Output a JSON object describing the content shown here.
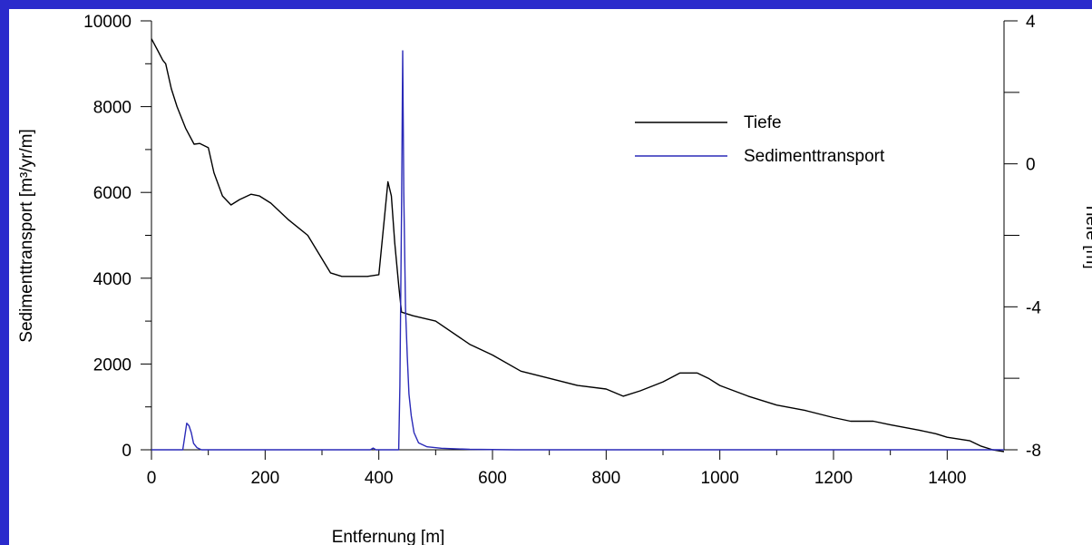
{
  "chart_data": {
    "type": "line",
    "xlabel": "Entfernung [m]",
    "ylabel": "Sedimenttransport [m³/yr/m]",
    "y2label": "Tiefe [m]",
    "xlim": [
      0,
      1500
    ],
    "ylim": [
      0,
      10000
    ],
    "y2lim": [
      -8,
      4
    ],
    "x_ticks": [
      "0",
      "200",
      "400",
      "600",
      "800",
      "1000",
      "1200",
      "1400"
    ],
    "y_ticks": [
      "0",
      "2000",
      "4000",
      "6000",
      "8000",
      "10000"
    ],
    "y2_ticks": [
      "-8",
      "-4",
      "0",
      "4"
    ],
    "grid": false,
    "legend_position": "top-right",
    "colors": {
      "tiefe": "#000000",
      "sediment": "#2a2ab8",
      "background": "#2b2bcc"
    },
    "series": [
      {
        "name": "Tiefe",
        "axis": "right",
        "x": [
          0,
          5,
          10,
          20,
          25,
          35,
          45,
          60,
          75,
          85,
          100,
          110,
          125,
          140,
          155,
          175,
          190,
          210,
          240,
          275,
          315,
          335,
          380,
          400,
          410,
          416,
          422,
          428,
          435,
          440,
          460,
          500,
          560,
          600,
          650,
          700,
          750,
          800,
          830,
          860,
          900,
          930,
          960,
          980,
          1000,
          1050,
          1100,
          1150,
          1200,
          1230,
          1270,
          1300,
          1350,
          1380,
          1400,
          1440,
          1460,
          1480,
          1500
        ],
        "y": [
          3.5,
          3.35,
          3.2,
          2.9,
          2.8,
          2.1,
          1.6,
          1.0,
          0.55,
          0.57,
          0.45,
          -0.25,
          -0.9,
          -1.15,
          -1.0,
          -0.85,
          -0.9,
          -1.1,
          -1.55,
          -2.0,
          -3.05,
          -3.15,
          -3.15,
          -3.1,
          -1.5,
          -0.5,
          -0.9,
          -2.2,
          -3.4,
          -4.15,
          -4.25,
          -4.4,
          -5.05,
          -5.35,
          -5.8,
          -6.0,
          -6.2,
          -6.3,
          -6.5,
          -6.35,
          -6.1,
          -5.85,
          -5.85,
          -6.0,
          -6.2,
          -6.5,
          -6.75,
          -6.9,
          -7.1,
          -7.2,
          -7.2,
          -7.3,
          -7.45,
          -7.55,
          -7.65,
          -7.75,
          -7.9,
          -8.0,
          -8.05
        ]
      },
      {
        "name": "Sedimenttransport",
        "axis": "left",
        "x": [
          0,
          55,
          58,
          62,
          66,
          70,
          74,
          80,
          88,
          100,
          385,
          390,
          395,
          400,
          435,
          437,
          440,
          442,
          444,
          447,
          450,
          453,
          457,
          462,
          470,
          485,
          510,
          560,
          640,
          1500
        ],
        "y": [
          0,
          0,
          250,
          620,
          560,
          400,
          150,
          50,
          0,
          0,
          0,
          40,
          0,
          0,
          0,
          1500,
          5500,
          9300,
          6000,
          3300,
          2200,
          1300,
          800,
          400,
          160,
          70,
          35,
          10,
          0,
          0
        ]
      }
    ]
  }
}
